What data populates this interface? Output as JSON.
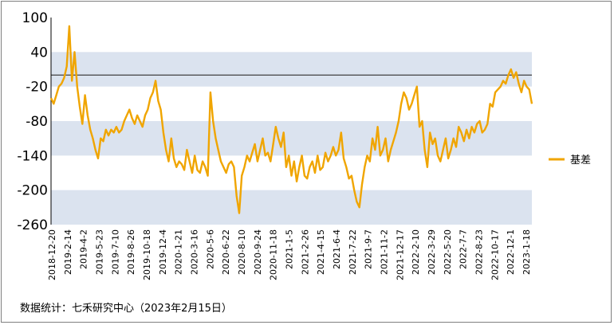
{
  "chart_data": {
    "type": "line",
    "ylim": [
      -260,
      100
    ],
    "yticks": [
      100,
      40,
      -20,
      -80,
      -140,
      -200,
      -260
    ],
    "bands": [
      [
        -20,
        40
      ],
      [
        -140,
        -80
      ],
      [
        -260,
        -200
      ]
    ],
    "reference_line": 0,
    "x_tick_labels": [
      "2018-12-20",
      "2019-2-14",
      "2019-4-2",
      "2019-5-23",
      "2019-7-10",
      "2019-8-26",
      "2019-10-18",
      "2019-12-4",
      "2020-1-21",
      "2020-3-16",
      "2020-5-6",
      "2020-6-22",
      "2020-8-10",
      "2020-9-24",
      "2020-11-18",
      "2021-1-5",
      "2021-2-26",
      "2021-4-15",
      "2021-6-4",
      "2021-7-22",
      "2021-9-7",
      "2021-11-2",
      "2021-12-17",
      "2022-2-10",
      "2022-3-29",
      "2022-5-20",
      "2022-7-7",
      "2022-8-23",
      "2022-10-17",
      "2022-12-1",
      "2023-1-18"
    ],
    "series": [
      {
        "name": "基差",
        "color": "#F0A500",
        "values": [
          -40,
          -50,
          -35,
          -20,
          -15,
          -5,
          15,
          85,
          -10,
          40,
          -20,
          -55,
          -85,
          -35,
          -70,
          -95,
          -110,
          -130,
          -145,
          -110,
          -115,
          -95,
          -105,
          -95,
          -100,
          -90,
          -100,
          -95,
          -80,
          -70,
          -60,
          -75,
          -85,
          -70,
          -80,
          -90,
          -70,
          -60,
          -40,
          -30,
          -10,
          -45,
          -60,
          -100,
          -130,
          -150,
          -110,
          -145,
          -160,
          -150,
          -155,
          -165,
          -130,
          -150,
          -170,
          -140,
          -165,
          -170,
          -150,
          -160,
          -175,
          -30,
          -80,
          -110,
          -130,
          -150,
          -160,
          -170,
          -155,
          -150,
          -160,
          -210,
          -240,
          -175,
          -160,
          -140,
          -150,
          -135,
          -120,
          -150,
          -130,
          -110,
          -140,
          -135,
          -150,
          -120,
          -90,
          -110,
          -125,
          -100,
          -160,
          -140,
          -175,
          -150,
          -185,
          -160,
          -140,
          -175,
          -180,
          -160,
          -150,
          -170,
          -140,
          -165,
          -160,
          -135,
          -150,
          -140,
          -125,
          -140,
          -130,
          -100,
          -145,
          -160,
          -180,
          -175,
          -200,
          -220,
          -230,
          -190,
          -160,
          -140,
          -150,
          -110,
          -130,
          -90,
          -140,
          -130,
          -110,
          -150,
          -130,
          -115,
          -100,
          -80,
          -50,
          -30,
          -40,
          -60,
          -50,
          -35,
          -20,
          -90,
          -80,
          -130,
          -160,
          -100,
          -120,
          -110,
          -140,
          -150,
          -130,
          -110,
          -145,
          -130,
          -110,
          -125,
          -90,
          -100,
          -115,
          -95,
          -110,
          -90,
          -100,
          -85,
          -80,
          -100,
          -95,
          -85,
          -50,
          -55,
          -30,
          -25,
          -20,
          -10,
          -15,
          0,
          10,
          -5,
          5,
          -15,
          -30,
          -10,
          -20,
          -25,
          -50
        ]
      }
    ],
    "legend_position": "right"
  },
  "legend": {
    "label": "基差"
  },
  "source_text": "数据统计：七禾研究中心（2023年2月15日）"
}
